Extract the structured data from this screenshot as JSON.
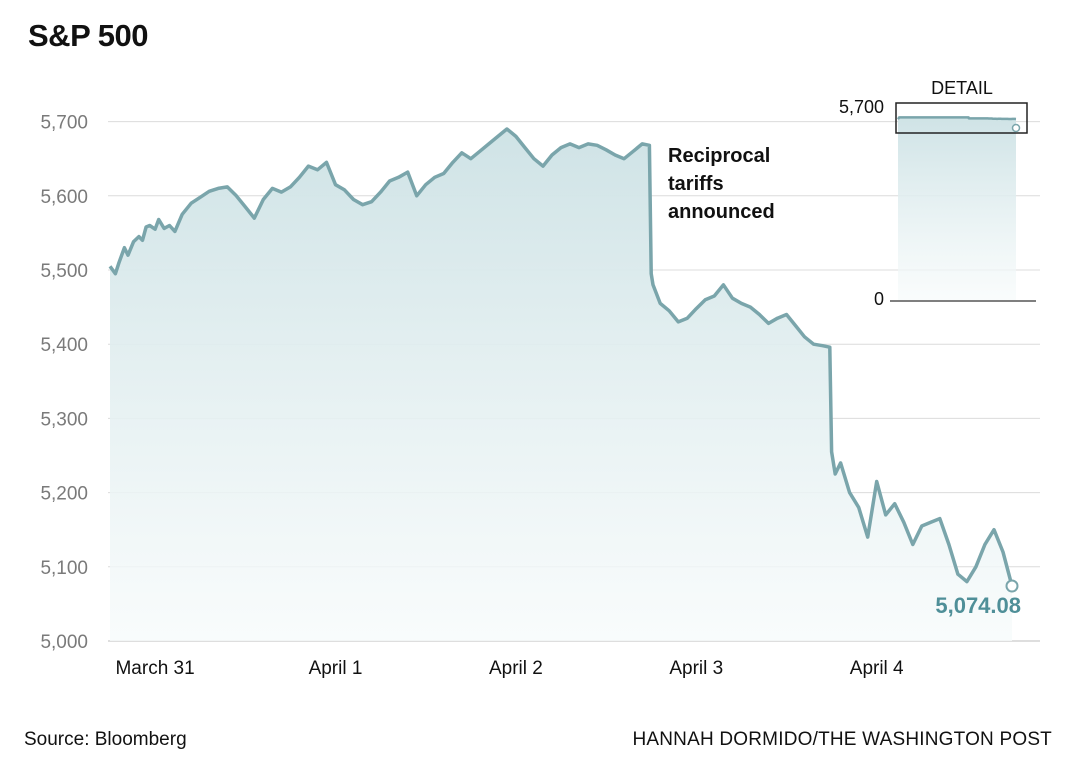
{
  "title": "S&P 500",
  "source": "Source: Bloomberg",
  "credit": "HANNAH DORMIDO/THE WASHINGTON POST",
  "colors": {
    "line": "#7aa5ab",
    "area_top": "#cfe3e6",
    "area_bottom": "#f4f9fa",
    "grid": "#dcdcdc",
    "end_label": "#4f8f98"
  },
  "chart_data": {
    "type": "line",
    "title": "S&P 500",
    "xlabel": "",
    "ylabel": "",
    "ylim": [
      5000,
      5750
    ],
    "xlim": [
      0,
      5
    ],
    "grid": true,
    "yticks": [
      5000,
      5100,
      5200,
      5300,
      5400,
      5500,
      5600,
      5700
    ],
    "ytick_labels": [
      "5,000",
      "5,100",
      "5,200",
      "5,300",
      "5,400",
      "5,500",
      "5,600",
      "5,700"
    ],
    "x_day_labels": [
      "March 31",
      "April 1",
      "April 2",
      "April 3",
      "April 4"
    ],
    "series": [
      {
        "x": [
          0.0,
          0.03,
          0.05,
          0.08,
          0.1,
          0.13,
          0.16,
          0.18,
          0.2,
          0.22,
          0.25,
          0.27,
          0.3,
          0.33,
          0.36,
          0.4,
          0.45,
          0.5,
          0.55,
          0.6,
          0.65,
          0.7,
          0.75,
          0.8,
          0.85,
          0.9,
          0.95,
          1.0,
          1.0,
          1.05,
          1.1,
          1.15,
          1.2,
          1.25,
          1.3,
          1.35,
          1.4,
          1.45,
          1.5,
          1.55,
          1.6,
          1.65,
          1.7,
          1.75,
          1.8,
          1.85,
          1.9,
          1.95,
          2.0,
          2.0,
          2.05,
          2.1,
          2.15,
          2.2,
          2.25,
          2.3,
          2.35,
          2.4,
          2.45,
          2.5,
          2.55,
          2.6,
          2.65,
          2.7,
          2.75,
          2.8,
          2.85,
          2.9,
          2.95,
          2.99,
          3.0,
          3.01,
          3.05,
          3.1,
          3.15,
          3.2,
          3.25,
          3.3,
          3.35,
          3.4,
          3.45,
          3.5,
          3.55,
          3.6,
          3.65,
          3.7,
          3.75,
          3.8,
          3.85,
          3.9,
          3.95,
          3.99,
          4.0,
          4.02,
          4.05,
          4.1,
          4.15,
          4.2,
          4.25,
          4.3,
          4.35,
          4.4,
          4.45,
          4.5,
          4.55,
          4.6,
          4.65,
          4.7,
          4.75,
          4.8,
          4.85,
          4.9,
          4.95,
          5.0
        ],
        "y": [
          5505,
          5495,
          5510,
          5530,
          5520,
          5538,
          5545,
          5540,
          5558,
          5560,
          5555,
          5568,
          5556,
          5560,
          5552,
          5575,
          5590,
          5598,
          5606,
          5610,
          5612,
          5600,
          5585,
          5570,
          5595,
          5610,
          5605,
          5612,
          5612,
          5625,
          5640,
          5635,
          5645,
          5615,
          5608,
          5595,
          5588,
          5592,
          5605,
          5620,
          5625,
          5632,
          5600,
          5615,
          5625,
          5630,
          5645,
          5658,
          5650,
          5650,
          5660,
          5670,
          5680,
          5690,
          5680,
          5665,
          5650,
          5640,
          5655,
          5665,
          5670,
          5665,
          5670,
          5668,
          5662,
          5655,
          5650,
          5660,
          5670,
          5668,
          5495,
          5480,
          5455,
          5445,
          5430,
          5435,
          5448,
          5460,
          5465,
          5480,
          5462,
          5455,
          5450,
          5440,
          5428,
          5435,
          5440,
          5425,
          5410,
          5400,
          5398,
          5396,
          5255,
          5225,
          5240,
          5200,
          5180,
          5140,
          5215,
          5170,
          5185,
          5160,
          5130,
          5155,
          5160,
          5165,
          5130,
          5090,
          5080,
          5100,
          5130,
          5150,
          5120,
          5074.08
        ]
      }
    ],
    "annotations": [
      {
        "text_lines": [
          "Reciprocal",
          "tariffs",
          "announced"
        ],
        "x": 3.0
      }
    ],
    "end_label": "5,074.08",
    "inset": {
      "title": "DETAIL",
      "ylim": [
        0,
        5700
      ],
      "ytick_labels": [
        "5,700",
        "0"
      ]
    }
  }
}
